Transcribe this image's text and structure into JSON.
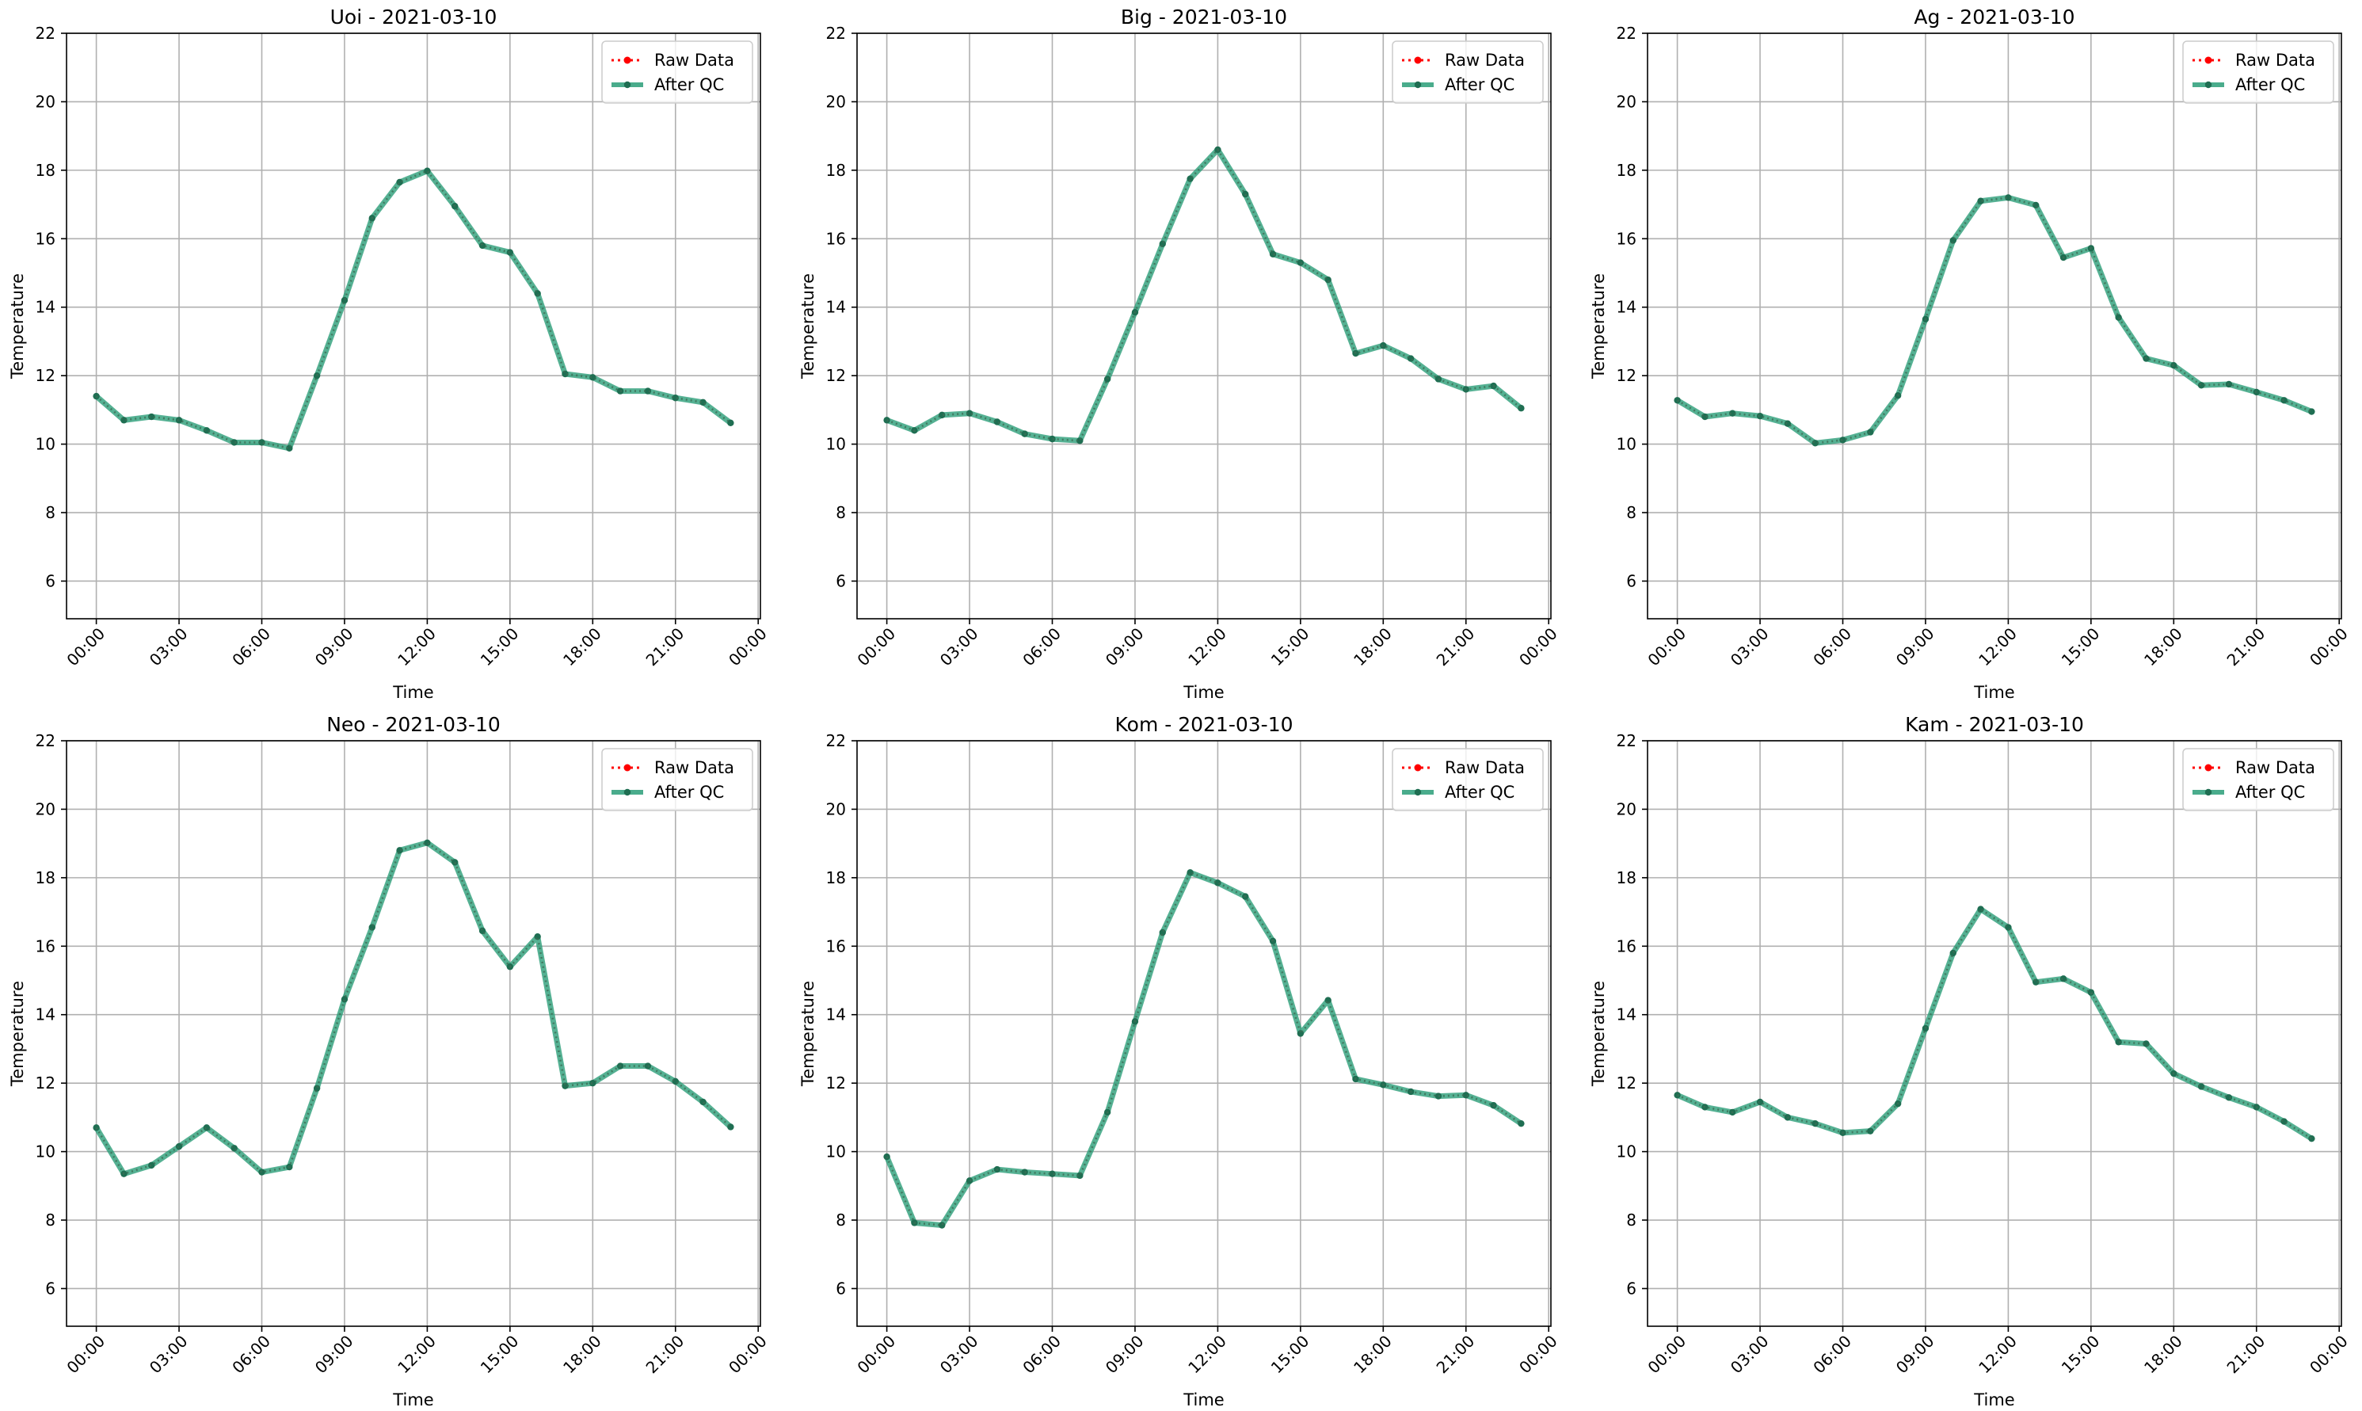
{
  "chart_data": [
    {
      "type": "line",
      "title": "Uoi - 2021-03-10",
      "xlabel": "Time",
      "ylabel": "Temperature",
      "ylim": [
        4.9,
        22
      ],
      "yticks": [
        6,
        8,
        10,
        12,
        14,
        16,
        18,
        20,
        22
      ],
      "xticks": [
        "00:00",
        "03:00",
        "06:00",
        "09:00",
        "12:00",
        "15:00",
        "18:00",
        "21:00",
        "00:00"
      ],
      "x": [
        "00:00",
        "01:00",
        "02:00",
        "03:00",
        "04:00",
        "05:00",
        "06:00",
        "07:00",
        "08:00",
        "09:00",
        "10:00",
        "11:00",
        "12:00",
        "13:00",
        "14:00",
        "15:00",
        "16:00",
        "17:00",
        "18:00",
        "19:00",
        "20:00",
        "21:00",
        "22:00",
        "23:00"
      ],
      "grid": true,
      "legend_position": "top-right",
      "series": [
        {
          "name": "Raw Data",
          "color": "#ff0000",
          "values": [
            11.4,
            10.7,
            10.8,
            10.7,
            10.4,
            10.05,
            10.05,
            9.88,
            12.0,
            14.2,
            16.6,
            17.65,
            17.98,
            16.95,
            15.8,
            15.6,
            14.4,
            12.05,
            11.95,
            11.55,
            11.55,
            11.35,
            11.22,
            10.62
          ]
        },
        {
          "name": "After QC",
          "color": "#2a9d78",
          "values": [
            11.4,
            10.7,
            10.8,
            10.7,
            10.4,
            10.05,
            10.05,
            9.88,
            12.0,
            14.2,
            16.6,
            17.65,
            17.98,
            16.95,
            15.8,
            15.6,
            14.4,
            12.05,
            11.95,
            11.55,
            11.55,
            11.35,
            11.22,
            10.62
          ]
        }
      ]
    },
    {
      "type": "line",
      "title": "Big - 2021-03-10",
      "xlabel": "Time",
      "ylabel": "Temperature",
      "ylim": [
        4.9,
        22
      ],
      "yticks": [
        6,
        8,
        10,
        12,
        14,
        16,
        18,
        20,
        22
      ],
      "xticks": [
        "00:00",
        "03:00",
        "06:00",
        "09:00",
        "12:00",
        "15:00",
        "18:00",
        "21:00",
        "00:00"
      ],
      "x": [
        "00:00",
        "01:00",
        "02:00",
        "03:00",
        "04:00",
        "05:00",
        "06:00",
        "07:00",
        "08:00",
        "09:00",
        "10:00",
        "11:00",
        "12:00",
        "13:00",
        "14:00",
        "15:00",
        "16:00",
        "17:00",
        "18:00",
        "19:00",
        "20:00",
        "21:00",
        "22:00",
        "23:00"
      ],
      "grid": true,
      "legend_position": "top-right",
      "series": [
        {
          "name": "Raw Data",
          "color": "#ff0000",
          "values": [
            10.7,
            10.4,
            10.85,
            10.9,
            10.65,
            10.3,
            10.15,
            10.1,
            11.9,
            13.85,
            15.85,
            17.75,
            18.6,
            17.3,
            15.55,
            15.3,
            14.8,
            12.65,
            12.88,
            12.5,
            11.9,
            11.6,
            11.7,
            11.05
          ]
        },
        {
          "name": "After QC",
          "color": "#2a9d78",
          "values": [
            10.7,
            10.4,
            10.85,
            10.9,
            10.65,
            10.3,
            10.15,
            10.1,
            11.9,
            13.85,
            15.85,
            17.75,
            18.6,
            17.3,
            15.55,
            15.3,
            14.8,
            12.65,
            12.88,
            12.5,
            11.9,
            11.6,
            11.7,
            11.05
          ]
        }
      ]
    },
    {
      "type": "line",
      "title": "Ag - 2021-03-10",
      "xlabel": "Time",
      "ylabel": "Temperature",
      "ylim": [
        4.9,
        22
      ],
      "yticks": [
        6,
        8,
        10,
        12,
        14,
        16,
        18,
        20,
        22
      ],
      "xticks": [
        "00:00",
        "03:00",
        "06:00",
        "09:00",
        "12:00",
        "15:00",
        "18:00",
        "21:00",
        "00:00"
      ],
      "x": [
        "00:00",
        "01:00",
        "02:00",
        "03:00",
        "04:00",
        "05:00",
        "06:00",
        "07:00",
        "08:00",
        "09:00",
        "10:00",
        "11:00",
        "12:00",
        "13:00",
        "14:00",
        "15:00",
        "16:00",
        "17:00",
        "18:00",
        "19:00",
        "20:00",
        "21:00",
        "22:00",
        "23:00"
      ],
      "grid": true,
      "legend_position": "top-right",
      "series": [
        {
          "name": "Raw Data",
          "color": "#ff0000",
          "values": [
            11.28,
            10.8,
            10.9,
            10.82,
            10.6,
            10.03,
            10.12,
            10.35,
            11.42,
            13.65,
            15.95,
            17.1,
            17.2,
            16.98,
            15.45,
            15.72,
            13.7,
            12.5,
            12.3,
            11.72,
            11.75,
            11.52,
            11.28,
            10.95
          ]
        },
        {
          "name": "After QC",
          "color": "#2a9d78",
          "values": [
            11.28,
            10.8,
            10.9,
            10.82,
            10.6,
            10.03,
            10.12,
            10.35,
            11.42,
            13.65,
            15.95,
            17.1,
            17.2,
            16.98,
            15.45,
            15.72,
            13.7,
            12.5,
            12.3,
            11.72,
            11.75,
            11.52,
            11.28,
            10.95
          ]
        }
      ]
    },
    {
      "type": "line",
      "title": "Neo - 2021-03-10",
      "xlabel": "Time",
      "ylabel": "Temperature",
      "ylim": [
        4.9,
        22
      ],
      "yticks": [
        6,
        8,
        10,
        12,
        14,
        16,
        18,
        20,
        22
      ],
      "xticks": [
        "00:00",
        "03:00",
        "06:00",
        "09:00",
        "12:00",
        "15:00",
        "18:00",
        "21:00",
        "00:00"
      ],
      "x": [
        "00:00",
        "01:00",
        "02:00",
        "03:00",
        "04:00",
        "05:00",
        "06:00",
        "07:00",
        "08:00",
        "09:00",
        "10:00",
        "11:00",
        "12:00",
        "13:00",
        "14:00",
        "15:00",
        "16:00",
        "17:00",
        "18:00",
        "19:00",
        "20:00",
        "21:00",
        "22:00",
        "23:00"
      ],
      "grid": true,
      "legend_position": "top-right",
      "series": [
        {
          "name": "Raw Data",
          "color": "#ff0000",
          "values": [
            10.7,
            9.35,
            9.6,
            10.15,
            10.7,
            10.1,
            9.4,
            9.55,
            11.85,
            14.45,
            16.55,
            18.8,
            19.02,
            18.45,
            16.45,
            15.4,
            16.28,
            11.92,
            12.0,
            12.5,
            12.5,
            12.05,
            11.45,
            10.72
          ]
        },
        {
          "name": "After QC",
          "color": "#2a9d78",
          "values": [
            10.7,
            9.35,
            9.6,
            10.15,
            10.7,
            10.1,
            9.4,
            9.55,
            11.85,
            14.45,
            16.55,
            18.8,
            19.02,
            18.45,
            16.45,
            15.4,
            16.28,
            11.92,
            12.0,
            12.5,
            12.5,
            12.05,
            11.45,
            10.72
          ]
        }
      ]
    },
    {
      "type": "line",
      "title": "Kom - 2021-03-10",
      "xlabel": "Time",
      "ylabel": "Temperature",
      "ylim": [
        4.9,
        22
      ],
      "yticks": [
        6,
        8,
        10,
        12,
        14,
        16,
        18,
        20,
        22
      ],
      "xticks": [
        "00:00",
        "03:00",
        "06:00",
        "09:00",
        "12:00",
        "15:00",
        "18:00",
        "21:00",
        "00:00"
      ],
      "x": [
        "00:00",
        "01:00",
        "02:00",
        "03:00",
        "04:00",
        "05:00",
        "06:00",
        "07:00",
        "08:00",
        "09:00",
        "10:00",
        "11:00",
        "12:00",
        "13:00",
        "14:00",
        "15:00",
        "16:00",
        "17:00",
        "18:00",
        "19:00",
        "20:00",
        "21:00",
        "22:00",
        "23:00"
      ],
      "grid": true,
      "legend_position": "top-right",
      "series": [
        {
          "name": "Raw Data",
          "color": "#ff0000",
          "values": [
            9.85,
            7.92,
            7.85,
            9.15,
            9.48,
            9.4,
            9.35,
            9.3,
            11.15,
            13.8,
            16.4,
            18.15,
            17.85,
            17.45,
            16.15,
            13.45,
            14.42,
            12.12,
            11.95,
            11.75,
            11.62,
            11.65,
            11.35,
            10.82
          ]
        },
        {
          "name": "After QC",
          "color": "#2a9d78",
          "values": [
            9.85,
            7.92,
            7.85,
            9.15,
            9.48,
            9.4,
            9.35,
            9.3,
            11.15,
            13.8,
            16.4,
            18.15,
            17.85,
            17.45,
            16.15,
            13.45,
            14.42,
            12.12,
            11.95,
            11.75,
            11.62,
            11.65,
            11.35,
            10.82
          ]
        }
      ]
    },
    {
      "type": "line",
      "title": "Kam - 2021-03-10",
      "xlabel": "Time",
      "ylabel": "Temperature",
      "ylim": [
        4.9,
        22
      ],
      "yticks": [
        6,
        8,
        10,
        12,
        14,
        16,
        18,
        20,
        22
      ],
      "xticks": [
        "00:00",
        "03:00",
        "06:00",
        "09:00",
        "12:00",
        "15:00",
        "18:00",
        "21:00",
        "00:00"
      ],
      "x": [
        "00:00",
        "01:00",
        "02:00",
        "03:00",
        "04:00",
        "05:00",
        "06:00",
        "07:00",
        "08:00",
        "09:00",
        "10:00",
        "11:00",
        "12:00",
        "13:00",
        "14:00",
        "15:00",
        "16:00",
        "17:00",
        "18:00",
        "19:00",
        "20:00",
        "21:00",
        "22:00",
        "23:00"
      ],
      "grid": true,
      "legend_position": "top-right",
      "series": [
        {
          "name": "Raw Data",
          "color": "#ff0000",
          "values": [
            11.65,
            11.3,
            11.15,
            11.45,
            11.0,
            10.82,
            10.55,
            10.6,
            11.4,
            13.6,
            15.8,
            17.08,
            16.55,
            14.95,
            15.05,
            14.65,
            13.2,
            13.15,
            12.28,
            11.9,
            11.58,
            11.3,
            10.88,
            10.38
          ]
        },
        {
          "name": "After QC",
          "color": "#2a9d78",
          "values": [
            11.65,
            11.3,
            11.15,
            11.45,
            11.0,
            10.82,
            10.55,
            10.6,
            11.4,
            13.6,
            15.8,
            17.08,
            16.55,
            14.95,
            15.05,
            14.65,
            13.2,
            13.15,
            12.28,
            11.9,
            11.58,
            11.3,
            10.88,
            10.38
          ]
        }
      ]
    }
  ]
}
